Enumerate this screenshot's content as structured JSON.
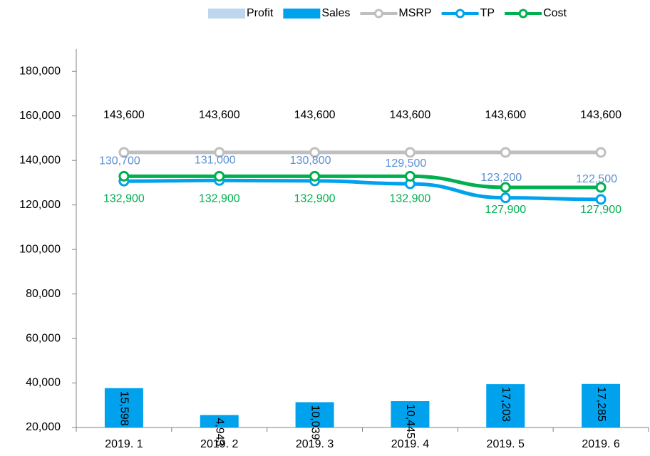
{
  "chart_data": {
    "type": "bar_line",
    "categories": [
      "2019. 1",
      "2019. 2",
      "2019. 3",
      "2019. 4",
      "2019. 5",
      "2019. 6"
    ],
    "series": [
      {
        "name": "Profit",
        "type": "bar",
        "color": "#bdd7ee",
        "axis": "y2",
        "values": [
          null,
          null,
          null,
          null,
          null,
          null
        ]
      },
      {
        "name": "Sales",
        "type": "bar",
        "color": "#00a2ed",
        "axis": "y2",
        "values": [
          15598,
          4943,
          10039,
          10445,
          17203,
          17285
        ],
        "value_labels": [
          "15,598",
          "4,943",
          "10,039",
          "10,445",
          "17,203",
          "17,285"
        ]
      },
      {
        "name": "MSRP",
        "type": "line",
        "color": "#bfbfbf",
        "values": [
          143600,
          143600,
          143600,
          143600,
          143600,
          143600
        ],
        "value_labels": [
          "143,600",
          "143,600",
          "143,600",
          "143,600",
          "143,600",
          "143,600"
        ],
        "label_color": "#000000"
      },
      {
        "name": "TP",
        "type": "line",
        "color": "#00a2ed",
        "values": [
          130700,
          131000,
          130800,
          129500,
          123200,
          122500
        ],
        "value_labels": [
          "130,700",
          "131,000",
          "130,800",
          "129,500",
          "123,200",
          "122,500"
        ],
        "label_color": "#5b8fd6"
      },
      {
        "name": "Cost",
        "type": "line",
        "color": "#00b050",
        "values": [
          132900,
          132900,
          132900,
          132900,
          127900,
          127900
        ],
        "value_labels": [
          "132,900",
          "132,900",
          "132,900",
          "132,900",
          "127,900",
          "127,900"
        ],
        "label_color": "#00b050"
      }
    ],
    "ylim": [
      20000,
      190000
    ],
    "yticks": [
      {
        "value": 20000,
        "label": "20,000"
      },
      {
        "value": 40000,
        "label": "40,000"
      },
      {
        "value": 60000,
        "label": "60,000"
      },
      {
        "value": 80000,
        "label": "80,000"
      },
      {
        "value": 100000,
        "label": "100,000"
      },
      {
        "value": 120000,
        "label": "120,000"
      },
      {
        "value": 140000,
        "label": "140,000"
      },
      {
        "value": 160000,
        "label": "160,000"
      },
      {
        "value": 180000,
        "label": "180,000"
      }
    ],
    "y2lim": [
      0,
      150000
    ],
    "legend": "top-right"
  }
}
